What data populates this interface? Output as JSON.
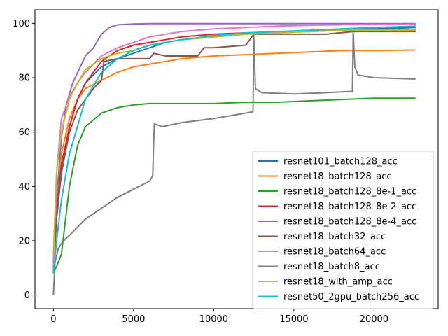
{
  "chart_data": {
    "type": "line",
    "title": "",
    "xlabel": "",
    "ylabel": "",
    "xlim": [
      -1150,
      24000
    ],
    "ylim": [
      -5,
      105
    ],
    "xticks": [
      0,
      5000,
      10000,
      15000,
      20000
    ],
    "yticks": [
      0,
      20,
      40,
      60,
      80,
      100
    ],
    "grid": false,
    "legend_position": "lower right",
    "series": [
      {
        "name": "resnet101_batch128_acc",
        "color": "#1f77b4",
        "x": [
          0,
          200,
          500,
          1000,
          1500,
          2000,
          3000,
          4000,
          5000,
          6000,
          7000,
          8000,
          10000,
          12000,
          14000,
          16000,
          18000,
          20000,
          22600
        ],
        "y": [
          10,
          30,
          45,
          62,
          72,
          78,
          84,
          87,
          89,
          91,
          93,
          94,
          95,
          96,
          97,
          97,
          98,
          98,
          98.5
        ]
      },
      {
        "name": "resnet18_batch128_acc",
        "color": "#ff7f0e",
        "x": [
          0,
          200,
          500,
          1000,
          1500,
          2000,
          3000,
          4000,
          5000,
          6000,
          7000,
          8000,
          10000,
          12000,
          14000,
          16000,
          18000,
          20000,
          22600
        ],
        "y": [
          12,
          35,
          52,
          65,
          72,
          76,
          79,
          82,
          84,
          85,
          86,
          87,
          88,
          88.5,
          89,
          89.5,
          90,
          90,
          90.2
        ]
      },
      {
        "name": "resnet18_batch128_8e-1_acc",
        "color": "#2ca02c",
        "x": [
          0,
          150,
          300,
          500,
          700,
          1000,
          1500,
          2000,
          3000,
          4000,
          5000,
          6000,
          8000,
          10000,
          12000,
          14000,
          16000,
          18000,
          20000,
          22600
        ],
        "y": [
          8,
          10,
          12,
          15,
          25,
          40,
          55,
          62,
          67,
          69,
          70,
          70.5,
          70.5,
          70.5,
          71,
          71,
          71.5,
          72,
          72.5,
          72.5
        ]
      },
      {
        "name": "resnet18_batch128_8e-2_acc",
        "color": "#d62728",
        "x": [
          0,
          200,
          500,
          1000,
          1500,
          2000,
          3000,
          4000,
          5000,
          6000,
          7000,
          8000,
          10000,
          12000,
          14000,
          16000,
          18000,
          20000,
          22600
        ],
        "y": [
          12,
          30,
          48,
          62,
          72,
          78,
          86,
          90,
          92,
          93,
          94,
          95,
          96,
          96.5,
          97,
          97,
          97.5,
          97.5,
          97.5
        ]
      },
      {
        "name": "resnet18_batch128_8e-4_acc",
        "color": "#9467bd",
        "x": [
          0,
          200,
          500,
          800,
          1200,
          1600,
          2000,
          2500,
          3000,
          3500,
          4000,
          5000,
          6000,
          8000,
          10000,
          12000,
          14000,
          16000,
          18000,
          20000,
          22600
        ],
        "y": [
          10,
          35,
          58,
          70,
          78,
          83,
          88,
          91,
          96,
          98.5,
          99.5,
          99.8,
          99.9,
          99.9,
          99.9,
          99.9,
          99.9,
          99.9,
          99.9,
          99.9,
          99.9
        ]
      },
      {
        "name": "resnet18_batch32_acc",
        "color": "#8c564b",
        "x": [
          0,
          200,
          500,
          1000,
          1500,
          2000,
          2500,
          3000,
          3150,
          4000,
          5000,
          6000,
          6250,
          7000,
          8000,
          9000,
          9400,
          10000,
          12000,
          12500,
          13000,
          15000,
          17000,
          18700,
          19000,
          21000,
          22600
        ],
        "y": [
          8,
          28,
          45,
          60,
          68,
          72,
          76,
          79,
          86,
          87,
          87,
          87,
          89,
          88,
          88,
          88,
          91,
          91,
          92,
          96,
          96,
          96,
          96,
          97,
          97,
          97,
          97
        ]
      },
      {
        "name": "resnet18_batch64_acc",
        "color": "#e377c2",
        "x": [
          0,
          200,
          500,
          1000,
          1500,
          2000,
          3000,
          4000,
          5000,
          6000,
          7000,
          8000,
          10000,
          12000,
          14000,
          16000,
          18000,
          20000,
          22600
        ],
        "y": [
          10,
          45,
          65,
          73,
          78,
          82,
          88,
          91,
          93,
          95,
          96,
          97,
          98,
          98.5,
          99,
          99.3,
          99.5,
          99.6,
          99.7
        ]
      },
      {
        "name": "resnet18_batch8_acc",
        "color": "#7f7f7f",
        "x": [
          0,
          100,
          300,
          500,
          800,
          1000,
          1500,
          2000,
          3000,
          4000,
          5000,
          6000,
          6200,
          6250,
          6300,
          6800,
          8000,
          10000,
          12000,
          12450,
          12500,
          12600,
          13000,
          15000,
          17000,
          18650,
          18700,
          18800,
          19000,
          20000,
          22600
        ],
        "y": [
          0,
          12,
          17,
          19,
          21,
          22,
          25,
          28,
          32,
          36,
          39,
          42,
          44,
          56,
          63,
          62,
          63.5,
          65,
          67,
          67.5,
          96,
          76,
          74.5,
          74,
          74.5,
          75,
          97,
          84,
          81,
          80,
          79.5
        ]
      },
      {
        "name": "resnet18_with_amp_acc",
        "color": "#bcbd22",
        "x": [
          0,
          200,
          500,
          1000,
          1500,
          2000,
          3000,
          4000,
          5000,
          6000,
          7000,
          8000,
          10000,
          12000,
          14000,
          16000,
          18000,
          20000,
          22600
        ],
        "y": [
          15,
          45,
          60,
          72,
          78,
          83,
          87,
          89,
          90,
          92,
          93,
          94,
          95,
          96,
          96.5,
          97,
          97.5,
          97.5,
          97.5
        ]
      },
      {
        "name": "resnet50_2gpu_batch256_acc",
        "color": "#17becf",
        "x": [
          0,
          200,
          500,
          1000,
          1500,
          2000,
          3000,
          4000,
          5000,
          6000,
          7000,
          8000,
          10000,
          12000,
          14000,
          16000,
          18000,
          20000,
          22600
        ],
        "y": [
          8,
          20,
          35,
          52,
          62,
          72,
          82,
          87,
          90,
          92,
          93,
          94,
          95.5,
          96.5,
          97,
          97.5,
          98,
          98.5,
          99
        ]
      }
    ]
  }
}
